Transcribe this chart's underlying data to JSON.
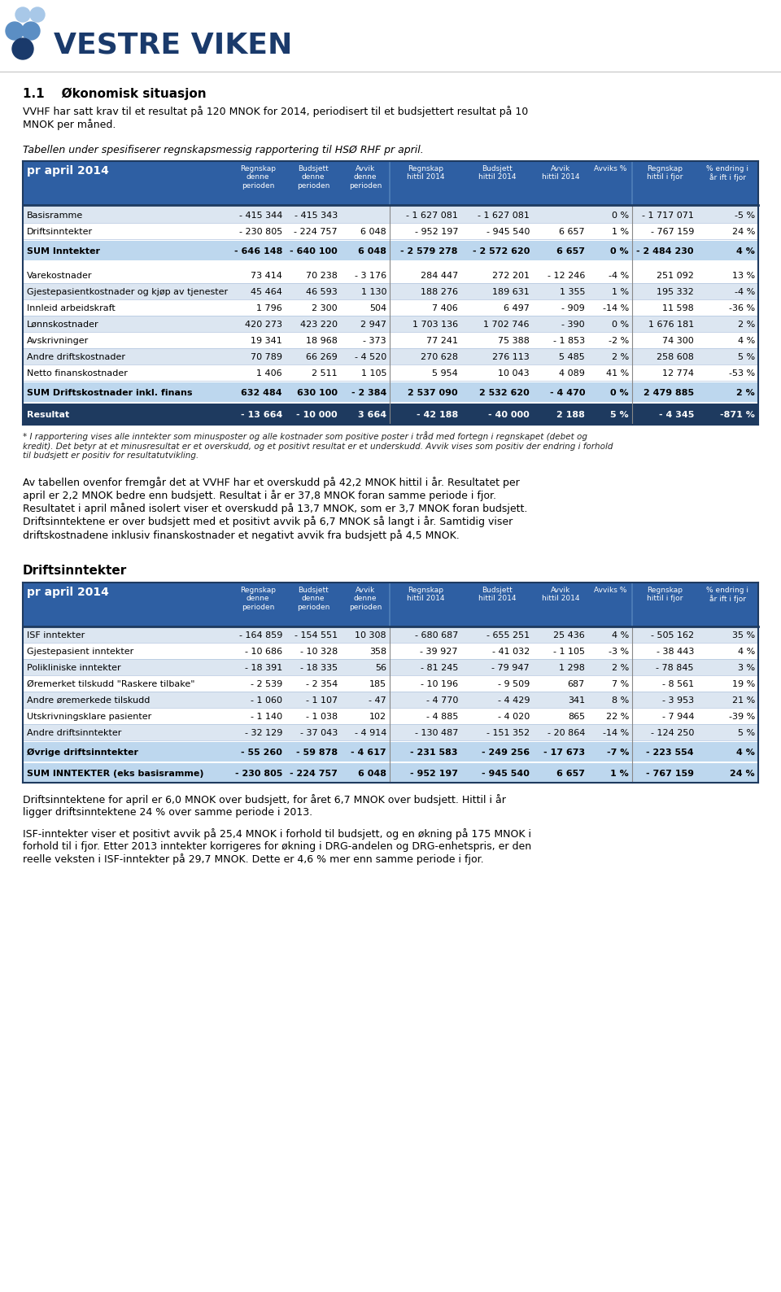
{
  "title": "VESTRE VIKEN",
  "section_title": "1.1    Økonomisk situasjon",
  "intro_text": "VVHF har satt krav til et resultat på 120 MNOK for 2014, periodisert til et budsjettert resultat på 10\nMNOK per måned.",
  "table1_intro": "Tabellen under spesifiserer regnskapsmessig rapportering til HSØ RHF pr april.",
  "table1_header_left": "pr april 2014",
  "table1_col_headers": [
    "Regnskap\ndenne\nperioden",
    "Budsjett\ndenne\nperioden",
    "Avvik\ndenne\nperioden",
    "Regnskap\nhittil 2014",
    "Budsjett\nhittil 2014",
    "Avvik\nhittil 2014",
    "Avviks %",
    "Regnskap\nhittil i fjor",
    "% endring i\når ift i fjor"
  ],
  "table1_rows": [
    [
      "Basisramme",
      "- 415 344",
      "- 415 343",
      "",
      "- 1 627 081",
      "- 1 627 081",
      "",
      "0 %",
      "- 1 717 071",
      "-5 %"
    ],
    [
      "Driftsinntekter",
      "- 230 805",
      "- 224 757",
      "6 048",
      "- 952 197",
      "- 945 540",
      "6 657",
      "1 %",
      "- 767 159",
      "24 %"
    ],
    [
      "SUM Inntekter",
      "- 646 148",
      "- 640 100",
      "6 048",
      "- 2 579 278",
      "- 2 572 620",
      "6 657",
      "0 %",
      "- 2 484 230",
      "4 %"
    ],
    [
      "Varekostnader",
      "73 414",
      "70 238",
      "- 3 176",
      "284 447",
      "272 201",
      "- 12 246",
      "-4 %",
      "251 092",
      "13 %"
    ],
    [
      "Gjestepasientkostnader og kjøp av tjenester",
      "45 464",
      "46 593",
      "1 130",
      "188 276",
      "189 631",
      "1 355",
      "1 %",
      "195 332",
      "-4 %"
    ],
    [
      "Innleid arbeidskraft",
      "1 796",
      "2 300",
      "504",
      "7 406",
      "6 497",
      "- 909",
      "-14 %",
      "11 598",
      "-36 %"
    ],
    [
      "Lønnskostnader",
      "420 273",
      "423 220",
      "2 947",
      "1 703 136",
      "1 702 746",
      "- 390",
      "0 %",
      "1 676 181",
      "2 %"
    ],
    [
      "Avskrivninger",
      "19 341",
      "18 968",
      "- 373",
      "77 241",
      "75 388",
      "- 1 853",
      "-2 %",
      "74 300",
      "4 %"
    ],
    [
      "Andre driftskostnader",
      "70 789",
      "66 269",
      "- 4 520",
      "270 628",
      "276 113",
      "5 485",
      "2 %",
      "258 608",
      "5 %"
    ],
    [
      "Netto finanskostnader",
      "1 406",
      "2 511",
      "1 105",
      "5 954",
      "10 043",
      "4 089",
      "41 %",
      "12 774",
      "-53 %"
    ],
    [
      "SUM Driftskostnader inkl. finans",
      "632 484",
      "630 100",
      "- 2 384",
      "2 537 090",
      "2 532 620",
      "- 4 470",
      "0 %",
      "2 479 885",
      "2 %"
    ],
    [
      "Resultat",
      "- 13 664",
      "- 10 000",
      "3 664",
      "- 42 188",
      "- 40 000",
      "2 188",
      "5 %",
      "- 4 345",
      "-871 %"
    ]
  ],
  "table1_sum_rows": [
    2,
    10
  ],
  "table1_result_row": 11,
  "footnote": "* I rapportering vises alle inntekter som minusposter og alle kostnader som positive poster i tråd med fortegn i regnskapet (debet og\nkredit). Det betyr at et minusresultat er et overskudd, og et positivt resultat er et underskudd. Avvik vises som positiv der endring i forhold\ntil budsjett er positiv for resultatutvikling.",
  "paragraph1": "Av tabellen ovenfor fremgår det at VVHF har et overskudd på 42,2 MNOK hittil i år. Resultatet per\napril er 2,2 MNOK bedre enn budsjett. Resultat i år er 37,8 MNOK foran samme periode i fjor.\nResultatet i april måned isolert viser et overskudd på 13,7 MNOK, som er 3,7 MNOK foran budsjett.\nDriftsinntektene er over budsjett med et positivt avvik på 6,7 MNOK så langt i år. Samtidig viser\ndriftskostnadene inklusiv finanskostnader et negativt avvik fra budsjett på 4,5 MNOK.",
  "section2_title": "Driftsinntekter",
  "table2_header_left": "pr april 2014",
  "table2_col_headers": [
    "Regnskap\ndenne\nperioden",
    "Budsjett\ndenne\nperioden",
    "Avvik\ndenne\nperioden",
    "Regnskap\nhittil 2014",
    "Budsjett\nhittil 2014",
    "Avvik\nhittil 2014",
    "Avviks %",
    "Regnskap\nhittil i fjor",
    "% endring i\når ift i fjor"
  ],
  "table2_rows": [
    [
      "ISF inntekter",
      "- 164 859",
      "- 154 551",
      "10 308",
      "- 680 687",
      "- 655 251",
      "25 436",
      "4 %",
      "- 505 162",
      "35 %"
    ],
    [
      "Gjestepasient inntekter",
      "- 10 686",
      "- 10 328",
      "358",
      "- 39 927",
      "- 41 032",
      "- 1 105",
      "-3 %",
      "- 38 443",
      "4 %"
    ],
    [
      "Polikliniske inntekter",
      "- 18 391",
      "- 18 335",
      "56",
      "- 81 245",
      "- 79 947",
      "1 298",
      "2 %",
      "- 78 845",
      "3 %"
    ],
    [
      "Øremerket tilskudd \"Raskere tilbake\"",
      "- 2 539",
      "- 2 354",
      "185",
      "- 10 196",
      "- 9 509",
      "687",
      "7 %",
      "- 8 561",
      "19 %"
    ],
    [
      "Andre øremerkede tilskudd",
      "- 1 060",
      "- 1 107",
      "- 47",
      "- 4 770",
      "- 4 429",
      "341",
      "8 %",
      "- 3 953",
      "21 %"
    ],
    [
      "Utskrivningsklare pasienter",
      "- 1 140",
      "- 1 038",
      "102",
      "- 4 885",
      "- 4 020",
      "865",
      "22 %",
      "- 7 944",
      "-39 %"
    ],
    [
      "Andre driftsinntekter",
      "- 32 129",
      "- 37 043",
      "- 4 914",
      "- 130 487",
      "- 151 352",
      "- 20 864",
      "-14 %",
      "- 124 250",
      "5 %"
    ],
    [
      "Øvrige driftsinntekter",
      "- 55 260",
      "- 59 878",
      "- 4 617",
      "- 231 583",
      "- 249 256",
      "- 17 673",
      "-7 %",
      "- 223 554",
      "4 %"
    ],
    [
      "SUM INNTEKTER (eks basisramme)",
      "- 230 805",
      "- 224 757",
      "6 048",
      "- 952 197",
      "- 945 540",
      "6 657",
      "1 %",
      "- 767 159",
      "24 %"
    ]
  ],
  "table2_sum_rows": [
    7,
    8
  ],
  "paragraph2": "Driftsinntektene for april er 6,0 MNOK over budsjett, for året 6,7 MNOK over budsjett. Hittil i år\nligger driftsinntektene 24 % over samme periode i 2013.",
  "paragraph3": "ISF-inntekter viser et positivt avvik på 25,4 MNOK i forhold til budsjett, og en økning på 175 MNOK i\nforhold til i fjor. Etter 2013 inntekter korrigeres for økning i DRG-andelen og DRG-enhetspris, er den\nreelle veksten i ISF-inntekter på 29,7 MNOK. Dette er 4,6 % mer enn samme periode i fjor.",
  "header_bg": "#2e5fa3",
  "header_text": "#ffffff",
  "row_alt_bg": "#dce6f1",
  "row_bg": "#ffffff",
  "sum_row_bg": "#bdd7ee",
  "result_row_bg": "#1e3a5f",
  "result_row_text": "#ffffff",
  "table_border": "#1e3a5f",
  "logo_blue_dark": "#1a3a6b",
  "logo_blue_mid": "#5b8ec4",
  "logo_blue_light": "#a8c8e8"
}
